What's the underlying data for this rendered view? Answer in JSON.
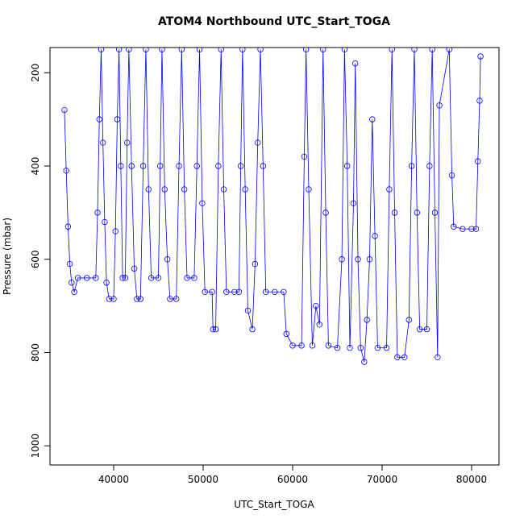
{
  "chart_data": {
    "type": "line",
    "title": "ATOM4 Northbound UTC_Start_TOGA",
    "x_label": "UTC_Start_TOGA",
    "y_label": "Pressure (mbar)",
    "x": [
      34500,
      34700,
      34900,
      35100,
      35300,
      35600,
      36000,
      37000,
      38000,
      38200,
      38400,
      38600,
      38800,
      39000,
      39200,
      39500,
      40000,
      40200,
      40400,
      40600,
      40800,
      41000,
      41300,
      41500,
      41700,
      42000,
      42300,
      42600,
      43000,
      43300,
      43600,
      43900,
      44200,
      45000,
      45200,
      45400,
      45700,
      46000,
      46300,
      47000,
      47300,
      47600,
      47900,
      48200,
      49000,
      49300,
      49600,
      49900,
      50200,
      51000,
      51100,
      51400,
      51700,
      52000,
      52300,
      52600,
      53500,
      54000,
      54200,
      54400,
      54700,
      55000,
      55500,
      55800,
      56100,
      56400,
      56700,
      57000,
      58000,
      59000,
      59300,
      60000,
      61000,
      61300,
      61500,
      61800,
      62200,
      62600,
      63000,
      63400,
      63700,
      64000,
      65000,
      65500,
      65800,
      66100,
      66400,
      66800,
      67000,
      67300,
      67600,
      68000,
      68300,
      68600,
      68900,
      69200,
      69500,
      70500,
      70800,
      71100,
      71400,
      71700,
      72500,
      73000,
      73300,
      73600,
      73900,
      74200,
      75000,
      75300,
      75600,
      75900,
      76200,
      76400,
      77500,
      77800,
      78000,
      79000,
      80000,
      80500,
      80700,
      80900,
      81000
    ],
    "series": [
      {
        "name": "Pressure",
        "color": "#0000ff",
        "values": [
          280,
          410,
          530,
          610,
          650,
          670,
          640,
          640,
          640,
          500,
          300,
          150,
          350,
          520,
          650,
          685,
          685,
          540,
          300,
          150,
          400,
          640,
          640,
          350,
          150,
          400,
          620,
          685,
          685,
          400,
          150,
          450,
          640,
          640,
          400,
          150,
          450,
          600,
          685,
          685,
          400,
          150,
          450,
          640,
          640,
          400,
          150,
          480,
          670,
          670,
          750,
          750,
          400,
          150,
          450,
          670,
          670,
          670,
          400,
          150,
          450,
          710,
          750,
          610,
          350,
          150,
          400,
          670,
          670,
          670,
          760,
          785,
          785,
          380,
          150,
          450,
          785,
          700,
          740,
          150,
          500,
          785,
          790,
          600,
          150,
          400,
          790,
          480,
          180,
          600,
          790,
          820,
          730,
          600,
          300,
          550,
          790,
          790,
          450,
          150,
          500,
          810,
          810,
          730,
          400,
          150,
          500,
          750,
          750,
          400,
          150,
          500,
          810,
          270,
          150,
          420,
          530,
          535,
          535,
          535,
          390,
          260,
          165
        ]
      }
    ],
    "xlim": [
      32883,
      83063
    ],
    "xticks": [
      40000,
      50000,
      60000,
      70000,
      80000
    ],
    "ylim": [
      1041,
      146
    ],
    "yticks": [
      200,
      400,
      600,
      800,
      1000
    ]
  }
}
